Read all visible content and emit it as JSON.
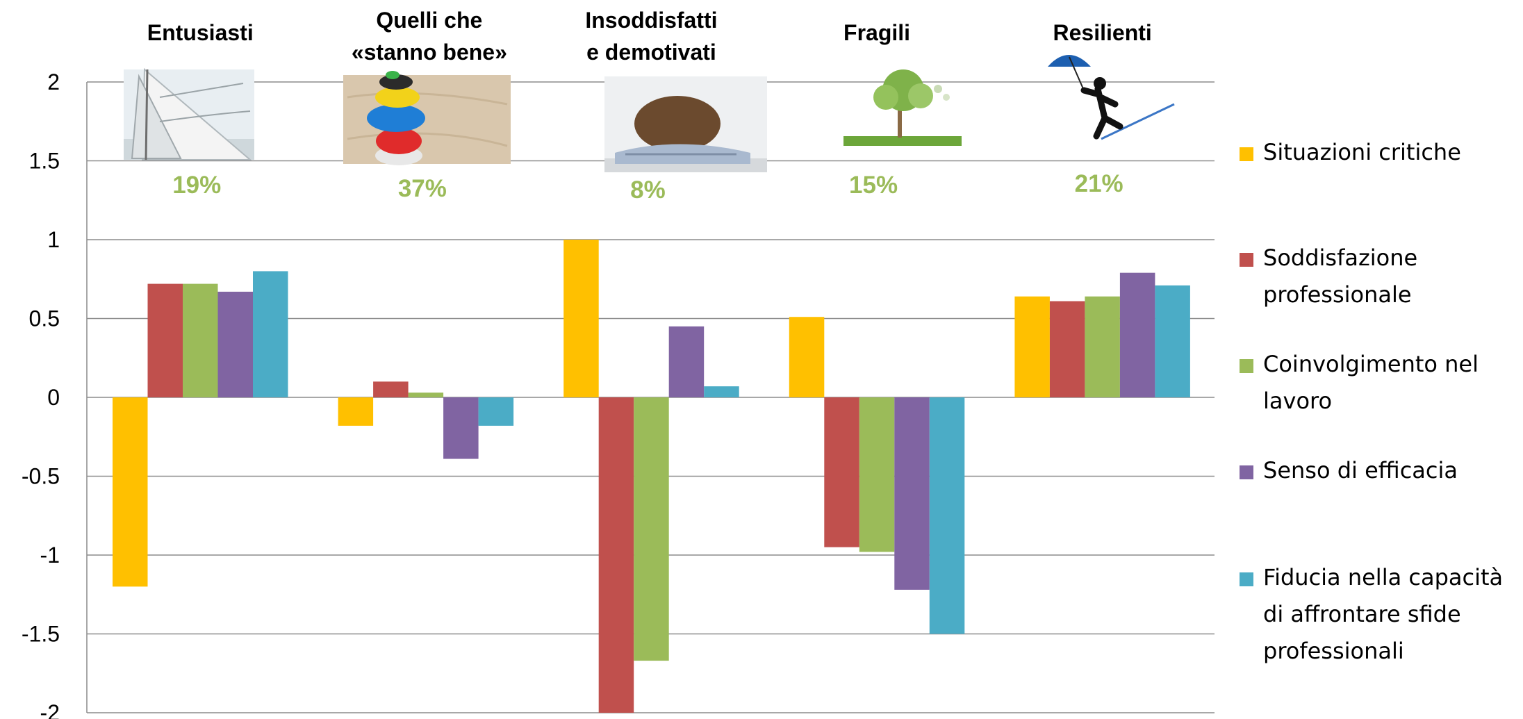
{
  "chart_data": {
    "type": "bar",
    "categories": [
      "Entusiasti",
      "Quelli che «stanno bene»",
      "Insoddisfatti e demotivati",
      "Fragili",
      "Resilienti"
    ],
    "category_label_lines": [
      [
        "Entusiasti"
      ],
      [
        "Quelli che",
        "«stanno bene»"
      ],
      [
        "Insoddisfatti",
        "e demotivati"
      ],
      [
        "Fragili"
      ],
      [
        "Resilienti"
      ]
    ],
    "category_percentages": [
      "19%",
      "37%",
      "8%",
      "15%",
      "21%"
    ],
    "category_images": [
      "sailboat",
      "stacked-stones",
      "sleeping-woman",
      "tree-on-grass",
      "umbrella-tightrope-walker"
    ],
    "series": [
      {
        "name": "Situazioni critiche",
        "legend_lines": [
          "Situazioni critiche"
        ],
        "color": "#ffc000",
        "values": [
          -1.2,
          -0.18,
          1.0,
          0.51,
          0.64
        ]
      },
      {
        "name": "Soddisfazione professionale",
        "legend_lines": [
          "Soddisfazione",
          "professionale"
        ],
        "color": "#c0504d",
        "values": [
          0.72,
          0.1,
          -2.0,
          -0.95,
          0.61
        ]
      },
      {
        "name": "Coinvolgimento nel lavoro",
        "legend_lines": [
          "Coinvolgimento nel",
          "lavoro"
        ],
        "color": "#9bbb59",
        "values": [
          0.72,
          0.03,
          -1.67,
          -0.98,
          0.64
        ]
      },
      {
        "name": "Senso di efficacia",
        "legend_lines": [
          "Senso di efficacia"
        ],
        "color": "#8064a2",
        "values": [
          0.67,
          -0.39,
          0.45,
          -1.22,
          0.79
        ]
      },
      {
        "name": "Fiducia nella capacità di affrontare sfide professionali",
        "legend_lines": [
          "Fiducia nella capacità",
          "di affrontare sfide",
          "professionali"
        ],
        "color": "#4bacc6",
        "values": [
          0.8,
          -0.18,
          0.07,
          -1.5,
          0.71
        ]
      }
    ],
    "yticks": [
      "2",
      "1.5",
      "1",
      "0.5",
      "0",
      "-0.5",
      "-1",
      "-1.5",
      "-2"
    ],
    "ylim": [
      -2,
      2
    ],
    "grid": true,
    "legend_position": "right",
    "title": "",
    "xlabel": "",
    "ylabel": ""
  }
}
